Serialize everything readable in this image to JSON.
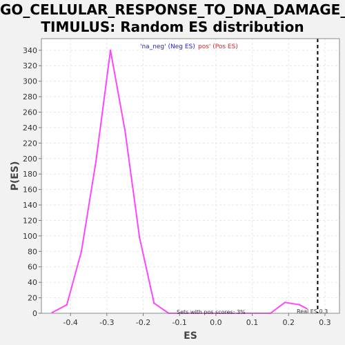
{
  "chart_data": {
    "type": "line",
    "title_line1": "GO_CELLULAR_RESPONSE_TO_DNA_DAMAGE_S",
    "title_line2": "TIMULUS: Random ES distribution",
    "xlabel": "ES",
    "ylabel": "P(ES)",
    "xlim": [
      -0.48,
      0.34
    ],
    "ylim": [
      0,
      355
    ],
    "xticks": [
      -0.4,
      -0.3,
      -0.2,
      -0.1,
      0.0,
      0.1,
      0.2,
      0.3
    ],
    "xtick_labels": [
      "-0.4",
      "-0.3",
      "-0.2",
      "-0.1",
      "0.0",
      "0.1",
      "0.2",
      "0.3"
    ],
    "yticks": [
      0,
      20,
      40,
      60,
      80,
      100,
      120,
      140,
      160,
      180,
      200,
      220,
      240,
      260,
      280,
      300,
      320,
      340
    ],
    "ytick_labels": [
      "0",
      "20",
      "40",
      "60",
      "80",
      "100",
      "120",
      "140",
      "160",
      "180",
      "200",
      "220",
      "240",
      "260",
      "280",
      "300",
      "320",
      "340"
    ],
    "grid": true,
    "series": [
      {
        "color": "#ff44ff",
        "x": [
          -0.45,
          -0.41,
          -0.37,
          -0.33,
          -0.29,
          -0.25,
          -0.21,
          -0.17,
          -0.13,
          -0.09,
          -0.05,
          -0.01,
          0.03,
          0.07,
          0.11,
          0.15,
          0.19,
          0.23,
          0.25
        ],
        "y": [
          1,
          11,
          80,
          196,
          340,
          236,
          98,
          13,
          0,
          0,
          0,
          0,
          0,
          0,
          0,
          0,
          14,
          11,
          6
        ]
      }
    ],
    "real_es": 0.28,
    "legend": {
      "neg_text": "'na_neg' (Neg ES)",
      "neg_color": "#2222cc",
      "pos_text": "pos' (Pos ES)",
      "pos_color": "#dd2222"
    },
    "annotations": {
      "sets_text": "Sets with pos scores: 3%",
      "real_text": "Real ES 0.3"
    }
  }
}
